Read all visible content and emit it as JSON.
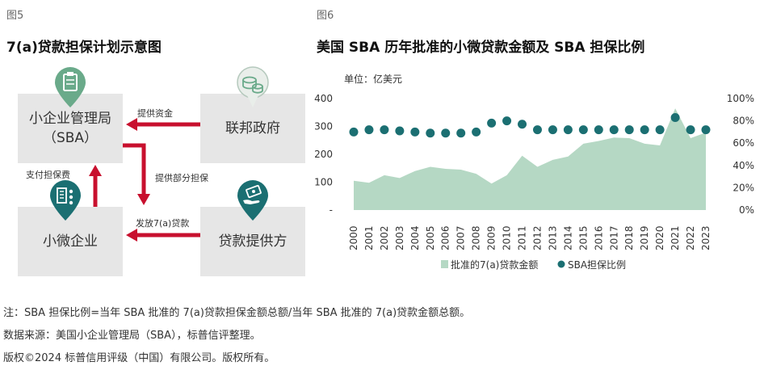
{
  "left_figure": {
    "label": "图5",
    "title": "7(a)贷款担保计划示意图",
    "boxes": {
      "sba_line1": "小企业管理局",
      "sba_line2": "（SBA）",
      "government": "联邦政府",
      "small_business": "小微企业",
      "lender": "贷款提供方"
    },
    "arrows": {
      "provide_funds": "提供资金",
      "partial_guarantee": "提供部分担保",
      "pay_fee": "支付担保费",
      "issue_loan": "发放7(a)贷款"
    },
    "icons": [
      "clipboard-icon",
      "coins-icon",
      "building-people-icon",
      "hand-money-icon"
    ],
    "colors": {
      "arrow": "#c8102e",
      "pin_green": "#6aaa8a",
      "pin_teal": "#1b6f72",
      "box": "#e6e6e6"
    }
  },
  "right_figure": {
    "label": "图6",
    "title": "美国 SBA 历年批准的小微贷款金额及 SBA 担保比例",
    "unit": "单位：亿美元"
  },
  "chart_data": {
    "type": "area",
    "categories": [
      "2000",
      "2001",
      "2002",
      "2003",
      "2004",
      "2005",
      "2006",
      "2007",
      "2008",
      "2009",
      "2010",
      "2011",
      "2012",
      "2013",
      "2014",
      "2015",
      "2016",
      "2017",
      "2018",
      "2019",
      "2020",
      "2021",
      "2022",
      "2023"
    ],
    "series": [
      {
        "name": "批准的7(a)贷款金额",
        "type": "area",
        "axis": "left",
        "color": "#b5d8c4",
        "values": [
          105,
          98,
          125,
          115,
          140,
          155,
          148,
          145,
          130,
          95,
          125,
          195,
          155,
          180,
          192,
          238,
          248,
          260,
          258,
          238,
          232,
          365,
          258,
          278
        ]
      },
      {
        "name": "SBA担保比例",
        "type": "scatter",
        "axis": "right",
        "unit": "%",
        "color": "#1b6f72",
        "values": [
          70,
          72,
          72,
          71,
          70,
          69,
          69,
          69,
          70,
          78,
          80,
          77,
          72,
          72,
          72,
          72,
          72,
          72,
          72,
          72,
          72,
          83,
          72,
          72
        ]
      }
    ],
    "left_axis": {
      "ylim": [
        0,
        400
      ],
      "ticks": [
        "-",
        "100",
        "200",
        "300",
        "400"
      ]
    },
    "right_axis": {
      "ylim": [
        0,
        100
      ],
      "ticks": [
        "0%",
        "20%",
        "40%",
        "60%",
        "80%",
        "100%"
      ]
    },
    "legend": {
      "position": "bottom",
      "entries": [
        "批准的7(a)贷款金额",
        "SBA担保比例"
      ]
    },
    "grid": false
  },
  "notes": {
    "line1": "注：SBA 担保比例=当年 SBA 批准的 7(a)贷款担保金额总额/当年 SBA 批准的 7(a)贷款金额总额。",
    "line2": " 数据来源：美国小企业管理局（SBA），标普信评整理。",
    "line3": "版权©2024 标普信用评级（中国）有限公司。版权所有。"
  }
}
